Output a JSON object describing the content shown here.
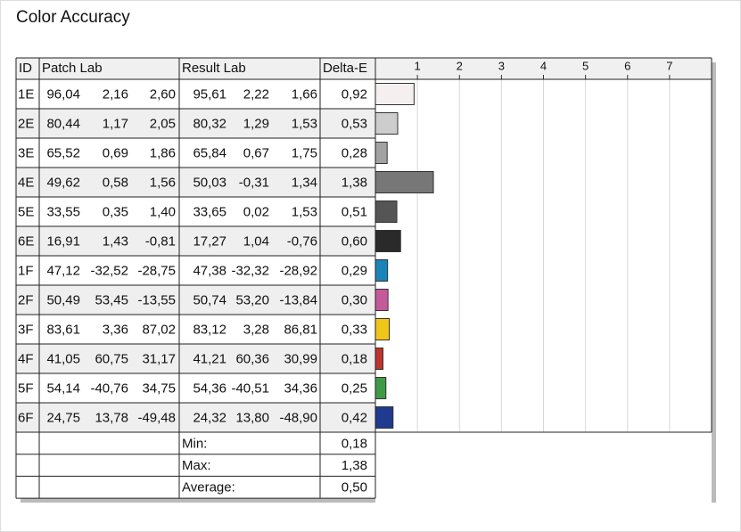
{
  "title": "Color Accuracy",
  "table": {
    "headers": [
      "ID",
      "Patch Lab",
      "Result Lab",
      "Delta-E"
    ],
    "rows": [
      {
        "id": "1E",
        "patch_lab": [
          "96,04",
          "2,16",
          "2,60"
        ],
        "result_lab": [
          "95,61",
          "2,22",
          "1,66"
        ],
        "delta_e": {
          "value": 0.92,
          "label": "0,92"
        },
        "color": "#f6efef"
      },
      {
        "id": "2E",
        "patch_lab": [
          "80,44",
          "1,17",
          "2,05"
        ],
        "result_lab": [
          "80,32",
          "1,29",
          "1,53"
        ],
        "delta_e": {
          "value": 0.53,
          "label": "0,53"
        },
        "color": "#cdcdcd"
      },
      {
        "id": "3E",
        "patch_lab": [
          "65,52",
          "0,69",
          "1,86"
        ],
        "result_lab": [
          "65,84",
          "0,67",
          "1,75"
        ],
        "delta_e": {
          "value": 0.28,
          "label": "0,28"
        },
        "color": "#a2a2a2"
      },
      {
        "id": "4E",
        "patch_lab": [
          "49,62",
          "0,58",
          "1,56"
        ],
        "result_lab": [
          "50,03",
          "-0,31",
          "1,34"
        ],
        "delta_e": {
          "value": 1.38,
          "label": "1,38"
        },
        "color": "#777777"
      },
      {
        "id": "5E",
        "patch_lab": [
          "33,55",
          "0,35",
          "1,40"
        ],
        "result_lab": [
          "33,65",
          "0,02",
          "1,53"
        ],
        "delta_e": {
          "value": 0.51,
          "label": "0,51"
        },
        "color": "#555555"
      },
      {
        "id": "6E",
        "patch_lab": [
          "16,91",
          "1,43",
          "-0,81"
        ],
        "result_lab": [
          "17,27",
          "1,04",
          "-0,76"
        ],
        "delta_e": {
          "value": 0.6,
          "label": "0,60"
        },
        "color": "#2a2a2a"
      },
      {
        "id": "1F",
        "patch_lab": [
          "47,12",
          "-32,52",
          "-28,75"
        ],
        "result_lab": [
          "47,38",
          "-32,32",
          "-28,92"
        ],
        "delta_e": {
          "value": 0.29,
          "label": "0,29"
        },
        "color": "#1a84b8"
      },
      {
        "id": "2F",
        "patch_lab": [
          "50,49",
          "53,45",
          "-13,55"
        ],
        "result_lab": [
          "50,74",
          "53,20",
          "-13,84"
        ],
        "delta_e": {
          "value": 0.3,
          "label": "0,30"
        },
        "color": "#c45a9a"
      },
      {
        "id": "3F",
        "patch_lab": [
          "83,61",
          "3,36",
          "87,02"
        ],
        "result_lab": [
          "83,12",
          "3,28",
          "86,81"
        ],
        "delta_e": {
          "value": 0.33,
          "label": "0,33"
        },
        "color": "#f2c619"
      },
      {
        "id": "4F",
        "patch_lab": [
          "41,05",
          "60,75",
          "31,17"
        ],
        "result_lab": [
          "41,21",
          "60,36",
          "30,99"
        ],
        "delta_e": {
          "value": 0.18,
          "label": "0,18"
        },
        "color": "#c0332f"
      },
      {
        "id": "5F",
        "patch_lab": [
          "54,14",
          "-40,76",
          "34,75"
        ],
        "result_lab": [
          "54,36",
          "-40,51",
          "34,36"
        ],
        "delta_e": {
          "value": 0.25,
          "label": "0,25"
        },
        "color": "#3f9a48"
      },
      {
        "id": "6F",
        "patch_lab": [
          "24,75",
          "13,78",
          "-49,48"
        ],
        "result_lab": [
          "24,32",
          "13,80",
          "-48,90"
        ],
        "delta_e": {
          "value": 0.42,
          "label": "0,42"
        },
        "color": "#1f3a8f"
      }
    ],
    "summary": [
      {
        "label": "Min:",
        "value": "0,18"
      },
      {
        "label": "Max:",
        "value": "1,38"
      },
      {
        "label": "Average:",
        "value": "0,50"
      }
    ]
  },
  "axis": {
    "xlim": [
      0,
      8
    ],
    "xticks": [
      1,
      2,
      3,
      4,
      5,
      6,
      7
    ],
    "grid": true
  }
}
